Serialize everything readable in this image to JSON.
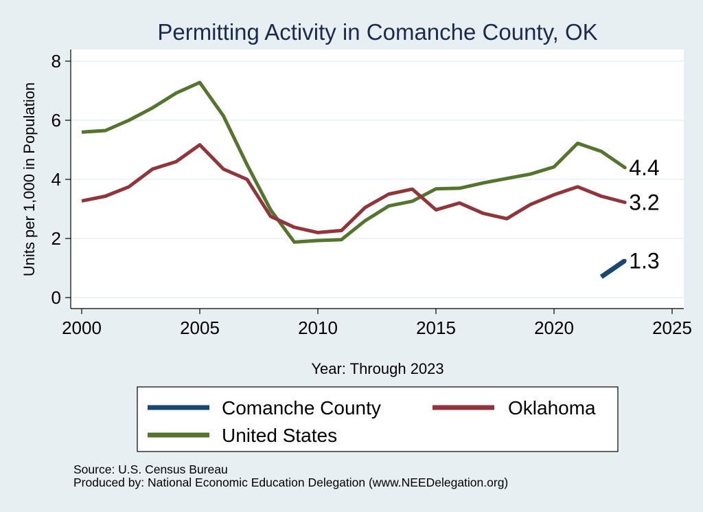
{
  "chart_data": {
    "type": "line",
    "title": "Permitting Activity in Comanche County, OK",
    "xlabel": "Year: Through 2023",
    "ylabel": "Units per 1,000 in Population",
    "xlim": [
      2000,
      2025
    ],
    "ylim": [
      0,
      8
    ],
    "xticks": [
      2000,
      2005,
      2010,
      2015,
      2020,
      2025
    ],
    "yticks": [
      0,
      2,
      4,
      6,
      8
    ],
    "grid": "horizontal",
    "legend_position": "bottom",
    "series": [
      {
        "name": "Comanche County",
        "color": "#1a476f",
        "x": [
          2022,
          2023
        ],
        "values": [
          0.7,
          1.25
        ],
        "end_label": "1.3"
      },
      {
        "name": "Oklahoma",
        "color": "#90353b",
        "x": [
          2000,
          2001,
          2002,
          2003,
          2004,
          2005,
          2006,
          2007,
          2008,
          2009,
          2010,
          2011,
          2012,
          2013,
          2014,
          2015,
          2016,
          2017,
          2018,
          2019,
          2020,
          2021,
          2022,
          2023
        ],
        "values": [
          3.27,
          3.43,
          3.75,
          4.35,
          4.6,
          5.17,
          4.35,
          4.0,
          2.75,
          2.38,
          2.2,
          2.27,
          3.05,
          3.5,
          3.67,
          2.97,
          3.2,
          2.85,
          2.67,
          3.15,
          3.48,
          3.75,
          3.43,
          3.22
        ],
        "end_label": "3.2"
      },
      {
        "name": "United States",
        "color": "#55752f",
        "x": [
          2000,
          2001,
          2002,
          2003,
          2004,
          2005,
          2006,
          2007,
          2008,
          2009,
          2010,
          2011,
          2012,
          2013,
          2014,
          2015,
          2016,
          2017,
          2018,
          2019,
          2020,
          2021,
          2022,
          2023
        ],
        "values": [
          5.6,
          5.65,
          6.0,
          6.42,
          6.92,
          7.28,
          6.15,
          4.5,
          2.97,
          1.88,
          1.93,
          1.96,
          2.6,
          3.1,
          3.26,
          3.68,
          3.7,
          3.88,
          4.03,
          4.18,
          4.42,
          5.22,
          4.95,
          4.4
        ],
        "end_label": "4.4"
      }
    ],
    "legend": [
      "Comanche County",
      "Oklahoma",
      "United States"
    ]
  },
  "footer": {
    "source": "Source: U.S. Census Bureau",
    "produced_by": "Produced by: National Economic Education Delegation (www.NEEDelegation.org)"
  }
}
